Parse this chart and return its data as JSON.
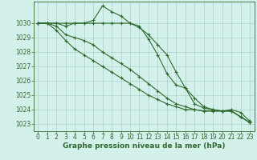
{
  "x": [
    0,
    1,
    2,
    3,
    4,
    5,
    6,
    7,
    8,
    9,
    10,
    11,
    12,
    13,
    14,
    15,
    16,
    17,
    18,
    19,
    20,
    21,
    22,
    23
  ],
  "series": [
    [
      1030.0,
      1030.0,
      1030.0,
      1030.0,
      1030.0,
      1030.0,
      1030.2,
      1031.2,
      1030.8,
      1030.5,
      1030.0,
      1029.7,
      1029.2,
      1028.5,
      1027.8,
      1026.6,
      1025.5,
      1024.8,
      1024.2,
      1024.0,
      1023.9,
      1023.9,
      1023.5,
      1023.1
    ],
    [
      1030.0,
      1030.0,
      1030.0,
      1029.8,
      1030.0,
      1030.0,
      1030.0,
      1030.0,
      1030.0,
      1030.0,
      1030.0,
      1029.8,
      1028.9,
      1027.8,
      1026.5,
      1025.7,
      1025.5,
      1024.4,
      1024.1,
      1024.0,
      1023.9,
      1024.0,
      1023.8,
      1023.2
    ],
    [
      1030.0,
      1030.0,
      1029.8,
      1029.2,
      1029.0,
      1028.8,
      1028.5,
      1028.0,
      1027.6,
      1027.2,
      1026.8,
      1026.3,
      1025.8,
      1025.3,
      1024.8,
      1024.4,
      1024.2,
      1024.0,
      1023.9,
      1023.9,
      1023.9,
      1023.9,
      1023.5,
      1023.1
    ],
    [
      1030.0,
      1030.0,
      1029.5,
      1028.8,
      1028.2,
      1027.8,
      1027.4,
      1027.0,
      1026.6,
      1026.2,
      1025.8,
      1025.4,
      1025.0,
      1024.7,
      1024.4,
      1024.2,
      1024.0,
      1024.0,
      1023.9,
      1023.9,
      1023.9,
      1023.9,
      1023.5,
      1023.1
    ]
  ],
  "line_color": "#2d6a2d",
  "line_width": 0.8,
  "marker": "+",
  "marker_size": 3,
  "marker_edge_width": 0.8,
  "background_color": "#d4f0eb",
  "grid_color": "#a0ccbf",
  "axis_color": "#2d6a2d",
  "xlabel": "Graphe pression niveau de la mer (hPa)",
  "xlabel_fontsize": 6.5,
  "ylim": [
    1022.5,
    1031.5
  ],
  "yticks": [
    1023,
    1024,
    1025,
    1026,
    1027,
    1028,
    1029,
    1030
  ],
  "xlim": [
    -0.5,
    23.5
  ],
  "xticks": [
    0,
    1,
    2,
    3,
    4,
    5,
    6,
    7,
    8,
    9,
    10,
    11,
    12,
    13,
    14,
    15,
    16,
    17,
    18,
    19,
    20,
    21,
    22,
    23
  ],
  "tick_fontsize": 5.5,
  "ytick_fontsize": 5.5
}
